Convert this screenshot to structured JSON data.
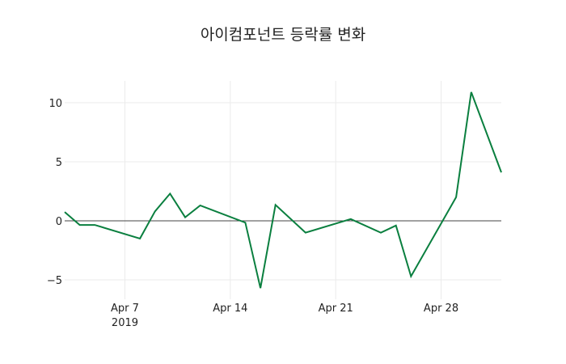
{
  "chart_data": {
    "type": "line",
    "title": "아이컴포넌트 등락률 변화",
    "xlabel": "",
    "ylabel": "",
    "ylim": [
      -7,
      12
    ],
    "xlim": [
      "2019-04-03",
      "2019-05-02"
    ],
    "grid": true,
    "x_tick_labels": [
      "Apr 7\n2019",
      "Apr 14",
      "Apr 21",
      "Apr 28"
    ],
    "y_ticks": [
      -5,
      0,
      5,
      10
    ],
    "series": [
      {
        "name": "등락률",
        "color": "#0a7f3f",
        "x": [
          "2019-04-03",
          "2019-04-04",
          "2019-04-05",
          "2019-04-08",
          "2019-04-09",
          "2019-04-10",
          "2019-04-11",
          "2019-04-12",
          "2019-04-15",
          "2019-04-16",
          "2019-04-17",
          "2019-04-19",
          "2019-04-22",
          "2019-04-24",
          "2019-04-25",
          "2019-04-26",
          "2019-04-29",
          "2019-04-30",
          "2019-05-02"
        ],
        "values": [
          0.75,
          -0.35,
          -0.35,
          -1.5,
          0.8,
          2.3,
          0.3,
          1.3,
          -0.15,
          -5.7,
          1.35,
          -1.0,
          0.15,
          -1.0,
          -0.4,
          -4.7,
          2.0,
          10.9,
          4.1
        ]
      }
    ]
  }
}
